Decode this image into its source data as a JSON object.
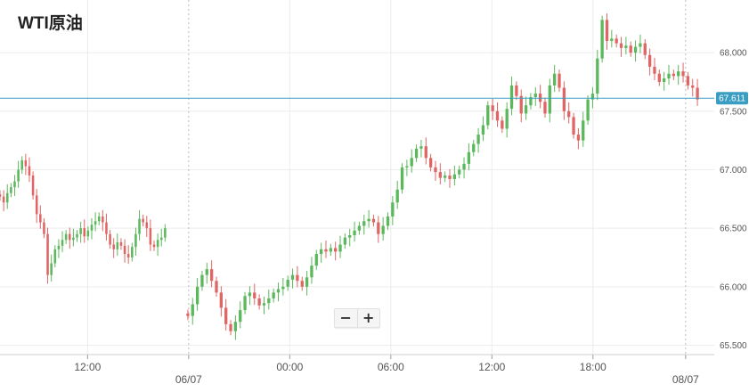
{
  "title": "WTI原油",
  "zoom": {
    "minus_label": "−",
    "plus_label": "+"
  },
  "colors": {
    "up": "#5cb85c",
    "down": "#e06666",
    "grid": "#ececec",
    "current_price_line": "#3a9ec2",
    "current_price_tag": "#3a9ec2"
  },
  "chart_data": {
    "type": "candlestick",
    "title": "WTI原油",
    "y_axis": {
      "ticks": [
        65.5,
        66.0,
        66.5,
        67.0,
        67.5,
        68.0
      ],
      "tick_labels": [
        "65.500",
        "66.000",
        "66.500",
        "67.000",
        "67.500",
        "68.000"
      ],
      "range": [
        65.42,
        68.45
      ],
      "position": "right"
    },
    "x_axis": {
      "ticks": [
        {
          "label": "12:00",
          "t": 12
        },
        {
          "label": "06/07",
          "t": 18,
          "date_marker": true
        },
        {
          "label": "00:00",
          "t": 24
        },
        {
          "label": "06:00",
          "t": 30
        },
        {
          "label": "12:00",
          "t": 36
        },
        {
          "label": "18:00",
          "t": 42
        },
        {
          "label": "08/07",
          "t": 47.5,
          "date_marker": true
        }
      ],
      "t_range": [
        6.8,
        49.2
      ]
    },
    "current_price": 67.611,
    "current_price_label": "67.611",
    "grid": true,
    "series": [
      {
        "segment": "session1",
        "t_start": 6.8,
        "t_end": 16.6,
        "closes": [
          66.77,
          66.72,
          66.8,
          66.85,
          66.9,
          67.0,
          67.08,
          67.03,
          66.95,
          66.78,
          66.62,
          66.55,
          66.45,
          66.1,
          66.2,
          66.32,
          66.35,
          66.4,
          66.45,
          66.4,
          66.42,
          66.45,
          66.5,
          66.43,
          66.48,
          66.53,
          66.56,
          66.6,
          66.55,
          66.45,
          66.36,
          66.32,
          66.38,
          66.35,
          66.28,
          66.25,
          66.34,
          66.45,
          66.58,
          66.55,
          66.5,
          66.36,
          66.34,
          66.4,
          66.42,
          66.5
        ]
      },
      {
        "segment": "session2",
        "t_start": 17.95,
        "t_end": 48.2,
        "closes": [
          65.75,
          65.85,
          66.0,
          66.1,
          66.15,
          66.05,
          65.95,
          65.82,
          65.68,
          65.62,
          65.7,
          65.8,
          65.92,
          65.95,
          65.9,
          65.84,
          65.86,
          65.9,
          65.95,
          65.98,
          66.0,
          66.06,
          66.1,
          66.05,
          66.0,
          66.08,
          66.18,
          66.28,
          66.32,
          66.3,
          66.33,
          66.3,
          66.36,
          66.42,
          66.44,
          66.48,
          66.52,
          66.56,
          66.58,
          66.55,
          66.45,
          66.52,
          66.6,
          66.72,
          66.83,
          67.02,
          67.03,
          67.1,
          67.18,
          67.2,
          67.1,
          67.02,
          66.98,
          66.93,
          66.95,
          66.92,
          66.96,
          67.0,
          67.05,
          67.15,
          67.22,
          67.3,
          67.38,
          67.55,
          67.5,
          67.42,
          67.35,
          67.52,
          67.72,
          67.63,
          67.48,
          67.55,
          67.62,
          67.65,
          67.58,
          67.48,
          67.72,
          67.82,
          67.7,
          67.5,
          67.45,
          67.3,
          67.25,
          67.42,
          67.6,
          67.65,
          67.95,
          68.28,
          68.1,
          68.12,
          68.08,
          68.04,
          68.06,
          68.0,
          68.05,
          68.08,
          67.98,
          67.88,
          67.82,
          67.75,
          67.78,
          67.82,
          67.8,
          67.84,
          67.8,
          67.72,
          67.7,
          67.6
        ]
      }
    ]
  }
}
